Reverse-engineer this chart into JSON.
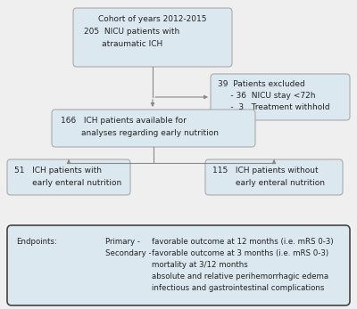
{
  "bg_color": "#efefef",
  "box_fill": "#dce8f0",
  "box_edge": "#aaaaaa",
  "endpoint_fill": "#dce8f0",
  "endpoint_edge": "#444444",
  "arrow_color": "#888888",
  "text_color": "#222222",
  "box1_line1": "Cohort of years 2012-2015",
  "box1_line2": "205  NICU patients with",
  "box1_line3": "       atraumatic ICH",
  "box2_line1": "39  Patients excluded",
  "box2_line2": "     - 36  NICU stay <72h",
  "box2_line3": "     -  3   Treatment withhold",
  "box3_line1": "166   ICH patients available for",
  "box3_line2": "        analyses regarding early nutrition",
  "box4_line1": "51   ICH patients with",
  "box4_line2": "       early enteral nutrition",
  "box5_line1": "115   ICH patients without",
  "box5_line2": "         early enteral nutrition",
  "ep_label": "Endpoints:",
  "ep_primary_label": "Primary -",
  "ep_secondary_label": "Secondary -",
  "ep_line1": "favorable outcome at 12 months (i.e. mRS 0-3)",
  "ep_line2": "favorable outcome at 3 months (i.e. mRS 0-3)",
  "ep_line3": "mortality at 3/12 months",
  "ep_line4": "absolute and relative perihemorrhagic edema",
  "ep_line5": "infectious and gastrointestinal complications",
  "fontsize": 6.5,
  "fontsize_ep": 6.2
}
